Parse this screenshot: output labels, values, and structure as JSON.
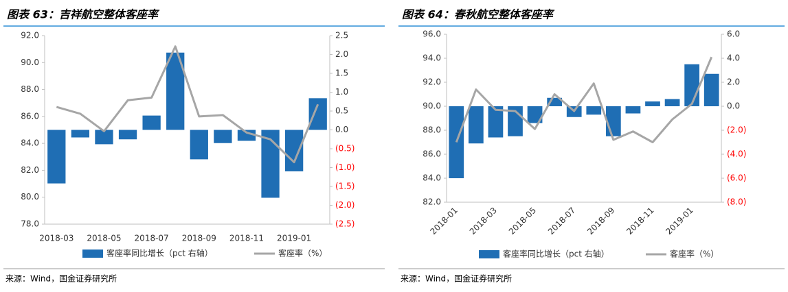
{
  "chart_data": [
    {
      "type": "combo",
      "title": "图表 63：吉祥航空整体客座率",
      "source": "来源：Wind，国金证券研究所",
      "categories": [
        "2018-03",
        null,
        "2018-05",
        null,
        "2018-07",
        null,
        "2018-09",
        null,
        "2018-11",
        null,
        "2019-01",
        null
      ],
      "xtick_rotation": 0,
      "series": [
        {
          "name": "客座率同比增长（pct 右轴）",
          "type": "bar",
          "axis": "y2",
          "color": "#1f6eb4",
          "values": [
            -1.42,
            -0.2,
            -0.38,
            -0.25,
            0.38,
            2.05,
            -0.78,
            -0.35,
            -0.29,
            -1.8,
            -1.1,
            0.84
          ]
        },
        {
          "name": "客座率（%）",
          "type": "line",
          "color": "#a6a6a6",
          "values": [
            86.7,
            86.2,
            84.9,
            87.2,
            87.4,
            91.2,
            86.0,
            86.1,
            84.8,
            84.3,
            82.6,
            86.9
          ]
        }
      ],
      "ylim": [
        78,
        92
      ],
      "yticks": [
        {
          "value": 78,
          "label": "78.0"
        },
        {
          "value": 80,
          "label": "80.0"
        },
        {
          "value": 82,
          "label": "82.0"
        },
        {
          "value": 84,
          "label": "84.0"
        },
        {
          "value": 86,
          "label": "86.0"
        },
        {
          "value": 88,
          "label": "88.0"
        },
        {
          "value": 90,
          "label": "90.0"
        },
        {
          "value": 92,
          "label": "92.0"
        }
      ],
      "y2lim": [
        -2.5,
        2.5
      ],
      "y2ticks": [
        {
          "value": -2.5,
          "label": "(2.5)"
        },
        {
          "value": -2,
          "label": "(2.0)"
        },
        {
          "value": -1.5,
          "label": "(1.5)"
        },
        {
          "value": -1,
          "label": "(1.0)"
        },
        {
          "value": -0.5,
          "label": "(0.5)"
        },
        {
          "value": 0,
          "label": "0.0"
        },
        0.5,
        {
          "value": 1,
          "label": "1.0"
        },
        1.5,
        {
          "value": 2,
          "label": "2.0"
        },
        2.5
      ],
      "negative_label_color": "#ff0000"
    },
    {
      "type": "combo",
      "title": "图表 64：春秋航空整体客座率",
      "source": "来源：Wind，国金证券研究所",
      "categories": [
        "2018-01",
        null,
        "2018-03",
        null,
        "2018-05",
        null,
        "2018-07",
        null,
        "2018-09",
        null,
        "2018-11",
        null,
        "2019-01",
        null
      ],
      "xtick_rotation": -45,
      "series": [
        {
          "name": "客座率同比增长（pct 右轴）",
          "type": "bar",
          "axis": "y2",
          "color": "#1f6eb4",
          "values": [
            -6.0,
            -3.1,
            -2.6,
            -2.5,
            -1.4,
            0.7,
            -0.9,
            -0.7,
            -2.5,
            -0.6,
            0.4,
            0.6,
            3.5,
            2.7
          ]
        },
        {
          "name": "客座率（%）",
          "type": "line",
          "color": "#a6a6a6",
          "values": [
            87.0,
            91.4,
            89.7,
            89.6,
            88.1,
            91.0,
            89.6,
            91.9,
            87.2,
            87.9,
            87.0,
            88.9,
            90.2,
            94.1
          ]
        }
      ],
      "ylim": [
        82,
        96
      ],
      "yticks": [
        {
          "value": 82,
          "label": "82.0"
        },
        {
          "value": 84,
          "label": "84.0"
        },
        {
          "value": 86,
          "label": "86.0"
        },
        {
          "value": 88,
          "label": "88.0"
        },
        {
          "value": 90,
          "label": "90.0"
        },
        {
          "value": 92,
          "label": "92.0"
        },
        {
          "value": 94,
          "label": "94.0"
        },
        {
          "value": 96,
          "label": "96.0"
        }
      ],
      "y2lim": [
        -8,
        6
      ],
      "y2ticks": [
        {
          "value": -8,
          "label": "(8.0)"
        },
        {
          "value": -6,
          "label": "(6.0)"
        },
        {
          "value": -4,
          "label": "(4.0)"
        },
        {
          "value": -2,
          "label": "(2.0)"
        },
        {
          "value": 0,
          "label": "0.0"
        },
        {
          "value": 2,
          "label": "2.0"
        },
        {
          "value": 4,
          "label": "4.0"
        },
        {
          "value": 6,
          "label": "6.0"
        }
      ],
      "negative_label_color": "#ff0000"
    }
  ]
}
